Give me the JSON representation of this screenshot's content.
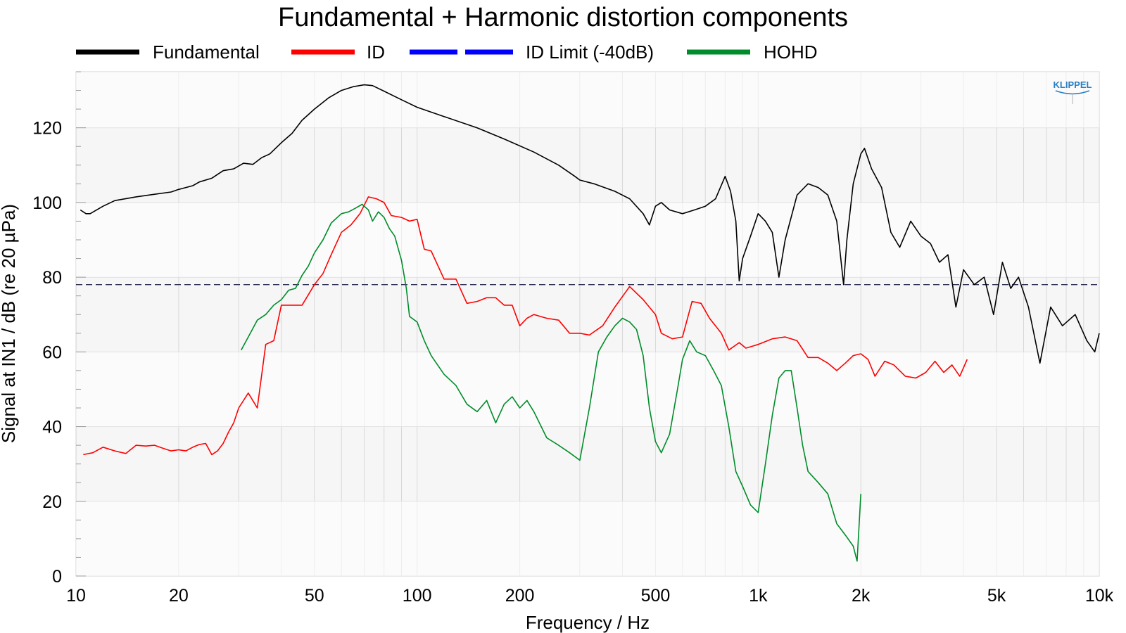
{
  "chart_data": {
    "type": "line",
    "title": "Fundamental + Harmonic distortion components",
    "xlabel": "Frequency / Hz",
    "ylabel": "Signal at IN1 / dB (re 20 µPa)",
    "x_scale": "log",
    "xlim": [
      10,
      10000
    ],
    "ylim": [
      0,
      135
    ],
    "x_ticks": [
      {
        "value": 10,
        "label": "10"
      },
      {
        "value": 20,
        "label": "20"
      },
      {
        "value": 50,
        "label": "50"
      },
      {
        "value": 100,
        "label": "100"
      },
      {
        "value": 200,
        "label": "200"
      },
      {
        "value": 500,
        "label": "500"
      },
      {
        "value": 1000,
        "label": "1k"
      },
      {
        "value": 2000,
        "label": "2k"
      },
      {
        "value": 5000,
        "label": "5k"
      },
      {
        "value": 10000,
        "label": "10k"
      }
    ],
    "y_ticks": [
      {
        "value": 0,
        "label": "0"
      },
      {
        "value": 20,
        "label": "20"
      },
      {
        "value": 40,
        "label": "40"
      },
      {
        "value": 60,
        "label": "60"
      },
      {
        "value": 80,
        "label": "80"
      },
      {
        "value": 100,
        "label": "100"
      },
      {
        "value": 120,
        "label": "120"
      }
    ],
    "grid": true,
    "legend_position": "top",
    "brand_logo_text": "KLIPPEL",
    "series": [
      {
        "name": "Fundamental",
        "color": "#000000",
        "style": "solid",
        "points": [
          [
            10.3,
            98
          ],
          [
            10.7,
            97
          ],
          [
            11,
            97
          ],
          [
            12,
            99
          ],
          [
            13,
            100.5
          ],
          [
            15,
            101.5
          ],
          [
            17,
            102.2
          ],
          [
            19,
            102.8
          ],
          [
            20,
            103.5
          ],
          [
            22,
            104.5
          ],
          [
            23,
            105.5
          ],
          [
            25,
            106.5
          ],
          [
            27,
            108.5
          ],
          [
            29,
            109
          ],
          [
            31,
            110.5
          ],
          [
            33,
            110.2
          ],
          [
            35,
            112
          ],
          [
            37,
            113
          ],
          [
            40,
            116
          ],
          [
            43,
            118.5
          ],
          [
            46,
            122
          ],
          [
            50,
            125
          ],
          [
            55,
            128
          ],
          [
            60,
            130
          ],
          [
            65,
            131
          ],
          [
            70,
            131.5
          ],
          [
            74,
            131.3
          ],
          [
            80,
            129.8
          ],
          [
            90,
            127.5
          ],
          [
            100,
            125.5
          ],
          [
            120,
            123
          ],
          [
            150,
            120
          ],
          [
            180,
            117
          ],
          [
            220,
            113.5
          ],
          [
            260,
            110
          ],
          [
            290,
            107
          ],
          [
            300,
            106
          ],
          [
            330,
            105
          ],
          [
            380,
            103
          ],
          [
            420,
            101
          ],
          [
            460,
            97
          ],
          [
            480,
            94
          ],
          [
            500,
            99
          ],
          [
            520,
            100
          ],
          [
            550,
            98
          ],
          [
            600,
            97
          ],
          [
            650,
            98
          ],
          [
            700,
            99
          ],
          [
            750,
            101
          ],
          [
            800,
            107
          ],
          [
            830,
            103
          ],
          [
            860,
            95
          ],
          [
            880,
            79
          ],
          [
            900,
            85
          ],
          [
            950,
            91
          ],
          [
            1000,
            97
          ],
          [
            1050,
            95
          ],
          [
            1100,
            92
          ],
          [
            1150,
            80
          ],
          [
            1200,
            90
          ],
          [
            1300,
            102
          ],
          [
            1400,
            105
          ],
          [
            1500,
            104
          ],
          [
            1600,
            102
          ],
          [
            1700,
            95
          ],
          [
            1780,
            78
          ],
          [
            1820,
            90
          ],
          [
            1900,
            105
          ],
          [
            2000,
            113
          ],
          [
            2050,
            114.5
          ],
          [
            2150,
            109
          ],
          [
            2300,
            104
          ],
          [
            2450,
            92
          ],
          [
            2600,
            88
          ],
          [
            2800,
            95
          ],
          [
            3000,
            91
          ],
          [
            3200,
            89
          ],
          [
            3400,
            84
          ],
          [
            3600,
            86
          ],
          [
            3800,
            72
          ],
          [
            4000,
            82
          ],
          [
            4300,
            78
          ],
          [
            4600,
            80
          ],
          [
            4900,
            70
          ],
          [
            5200,
            84
          ],
          [
            5500,
            77
          ],
          [
            5800,
            80
          ],
          [
            6200,
            72
          ],
          [
            6700,
            57
          ],
          [
            7200,
            72
          ],
          [
            7800,
            67
          ],
          [
            8500,
            70
          ],
          [
            9200,
            63
          ],
          [
            9700,
            60
          ],
          [
            10000,
            65
          ]
        ]
      },
      {
        "name": "ID",
        "color": "#ff0000",
        "style": "solid",
        "points": [
          [
            10.5,
            32.5
          ],
          [
            11.2,
            33
          ],
          [
            12,
            34.5
          ],
          [
            13,
            33.5
          ],
          [
            14,
            32.8
          ],
          [
            15,
            35
          ],
          [
            16,
            34.8
          ],
          [
            17,
            35
          ],
          [
            18,
            34.2
          ],
          [
            19,
            33.5
          ],
          [
            20,
            33.8
          ],
          [
            21,
            33.5
          ],
          [
            22,
            34.5
          ],
          [
            23,
            35.2
          ],
          [
            24,
            35.5
          ],
          [
            25,
            32.5
          ],
          [
            26,
            33.5
          ],
          [
            27,
            35.5
          ],
          [
            28,
            38.5
          ],
          [
            29,
            41
          ],
          [
            30,
            45
          ],
          [
            32,
            49
          ],
          [
            34,
            45
          ],
          [
            36,
            62
          ],
          [
            38,
            63
          ],
          [
            40,
            72.5
          ],
          [
            43,
            72.5
          ],
          [
            46,
            72.5
          ],
          [
            50,
            78
          ],
          [
            53,
            81
          ],
          [
            56,
            86
          ],
          [
            60,
            92
          ],
          [
            64,
            94
          ],
          [
            68,
            97
          ],
          [
            72,
            101.5
          ],
          [
            76,
            101
          ],
          [
            80,
            100
          ],
          [
            84,
            96.5
          ],
          [
            90,
            96
          ],
          [
            95,
            95
          ],
          [
            100,
            95.5
          ],
          [
            105,
            87.5
          ],
          [
            110,
            87
          ],
          [
            120,
            79.5
          ],
          [
            130,
            79.5
          ],
          [
            140,
            73
          ],
          [
            150,
            73.5
          ],
          [
            160,
            74.5
          ],
          [
            170,
            74.5
          ],
          [
            180,
            72.5
          ],
          [
            190,
            72.5
          ],
          [
            200,
            67
          ],
          [
            210,
            69
          ],
          [
            220,
            70
          ],
          [
            240,
            69
          ],
          [
            260,
            68.5
          ],
          [
            280,
            65
          ],
          [
            300,
            65
          ],
          [
            320,
            64.5
          ],
          [
            350,
            67
          ],
          [
            380,
            72
          ],
          [
            420,
            77.5
          ],
          [
            460,
            74
          ],
          [
            500,
            70
          ],
          [
            520,
            65
          ],
          [
            560,
            63.5
          ],
          [
            600,
            64
          ],
          [
            640,
            73.5
          ],
          [
            680,
            73
          ],
          [
            720,
            69
          ],
          [
            780,
            65
          ],
          [
            820,
            60.5
          ],
          [
            880,
            62.5
          ],
          [
            920,
            61
          ],
          [
            960,
            61.5
          ],
          [
            1000,
            62
          ],
          [
            1100,
            63.5
          ],
          [
            1200,
            64
          ],
          [
            1300,
            63
          ],
          [
            1400,
            58.5
          ],
          [
            1500,
            58.5
          ],
          [
            1600,
            57
          ],
          [
            1700,
            55
          ],
          [
            1800,
            57
          ],
          [
            1900,
            59
          ],
          [
            2000,
            59.5
          ],
          [
            2100,
            58
          ],
          [
            2200,
            53.5
          ],
          [
            2350,
            57.5
          ],
          [
            2500,
            56.5
          ],
          [
            2700,
            53.5
          ],
          [
            2900,
            53
          ],
          [
            3100,
            54.5
          ],
          [
            3300,
            57.5
          ],
          [
            3500,
            54.5
          ],
          [
            3700,
            56.5
          ],
          [
            3900,
            53.5
          ],
          [
            4100,
            58
          ]
        ]
      },
      {
        "name": "ID Limit (-40dB)",
        "color": "#0000ff",
        "style": "dashed",
        "display_color": "#333355",
        "points": [
          [
            10,
            78
          ],
          [
            10000,
            78
          ]
        ]
      },
      {
        "name": "HOHD",
        "color": "#008c2a",
        "style": "solid",
        "points": [
          [
            30.5,
            60.5
          ],
          [
            32,
            64
          ],
          [
            34,
            68.5
          ],
          [
            36,
            70
          ],
          [
            38,
            72.5
          ],
          [
            40,
            74
          ],
          [
            42,
            76.5
          ],
          [
            44,
            77
          ],
          [
            46,
            80.5
          ],
          [
            48,
            83
          ],
          [
            50,
            86.5
          ],
          [
            53,
            90
          ],
          [
            56,
            94.5
          ],
          [
            60,
            97
          ],
          [
            63,
            97.5
          ],
          [
            66,
            98.5
          ],
          [
            69,
            99.5
          ],
          [
            72,
            98
          ],
          [
            74,
            95
          ],
          [
            77,
            97.5
          ],
          [
            80,
            96
          ],
          [
            83,
            93
          ],
          [
            86,
            91
          ],
          [
            90,
            84.5
          ],
          [
            93,
            77
          ],
          [
            95,
            69.5
          ],
          [
            100,
            68
          ],
          [
            105,
            63
          ],
          [
            110,
            59
          ],
          [
            120,
            54
          ],
          [
            130,
            51
          ],
          [
            140,
            46
          ],
          [
            150,
            44
          ],
          [
            160,
            47
          ],
          [
            170,
            41
          ],
          [
            180,
            46
          ],
          [
            190,
            48
          ],
          [
            200,
            45
          ],
          [
            210,
            47
          ],
          [
            220,
            44
          ],
          [
            240,
            37
          ],
          [
            260,
            35
          ],
          [
            280,
            33
          ],
          [
            300,
            31
          ],
          [
            320,
            45
          ],
          [
            340,
            60
          ],
          [
            360,
            64
          ],
          [
            380,
            67
          ],
          [
            400,
            69
          ],
          [
            420,
            68
          ],
          [
            440,
            66
          ],
          [
            460,
            59
          ],
          [
            480,
            45
          ],
          [
            500,
            36
          ],
          [
            520,
            33
          ],
          [
            550,
            38
          ],
          [
            580,
            50
          ],
          [
            600,
            58
          ],
          [
            630,
            63
          ],
          [
            660,
            60
          ],
          [
            700,
            59
          ],
          [
            740,
            55
          ],
          [
            780,
            51
          ],
          [
            820,
            40
          ],
          [
            860,
            28
          ],
          [
            900,
            24
          ],
          [
            950,
            19
          ],
          [
            1000,
            17
          ],
          [
            1050,
            30
          ],
          [
            1100,
            43
          ],
          [
            1150,
            53
          ],
          [
            1200,
            55
          ],
          [
            1250,
            55
          ],
          [
            1300,
            45
          ],
          [
            1350,
            35
          ],
          [
            1400,
            28
          ],
          [
            1500,
            25
          ],
          [
            1600,
            22
          ],
          [
            1700,
            14
          ],
          [
            1800,
            11
          ],
          [
            1900,
            8
          ],
          [
            1950,
            4
          ],
          [
            2000,
            22
          ]
        ]
      }
    ]
  }
}
